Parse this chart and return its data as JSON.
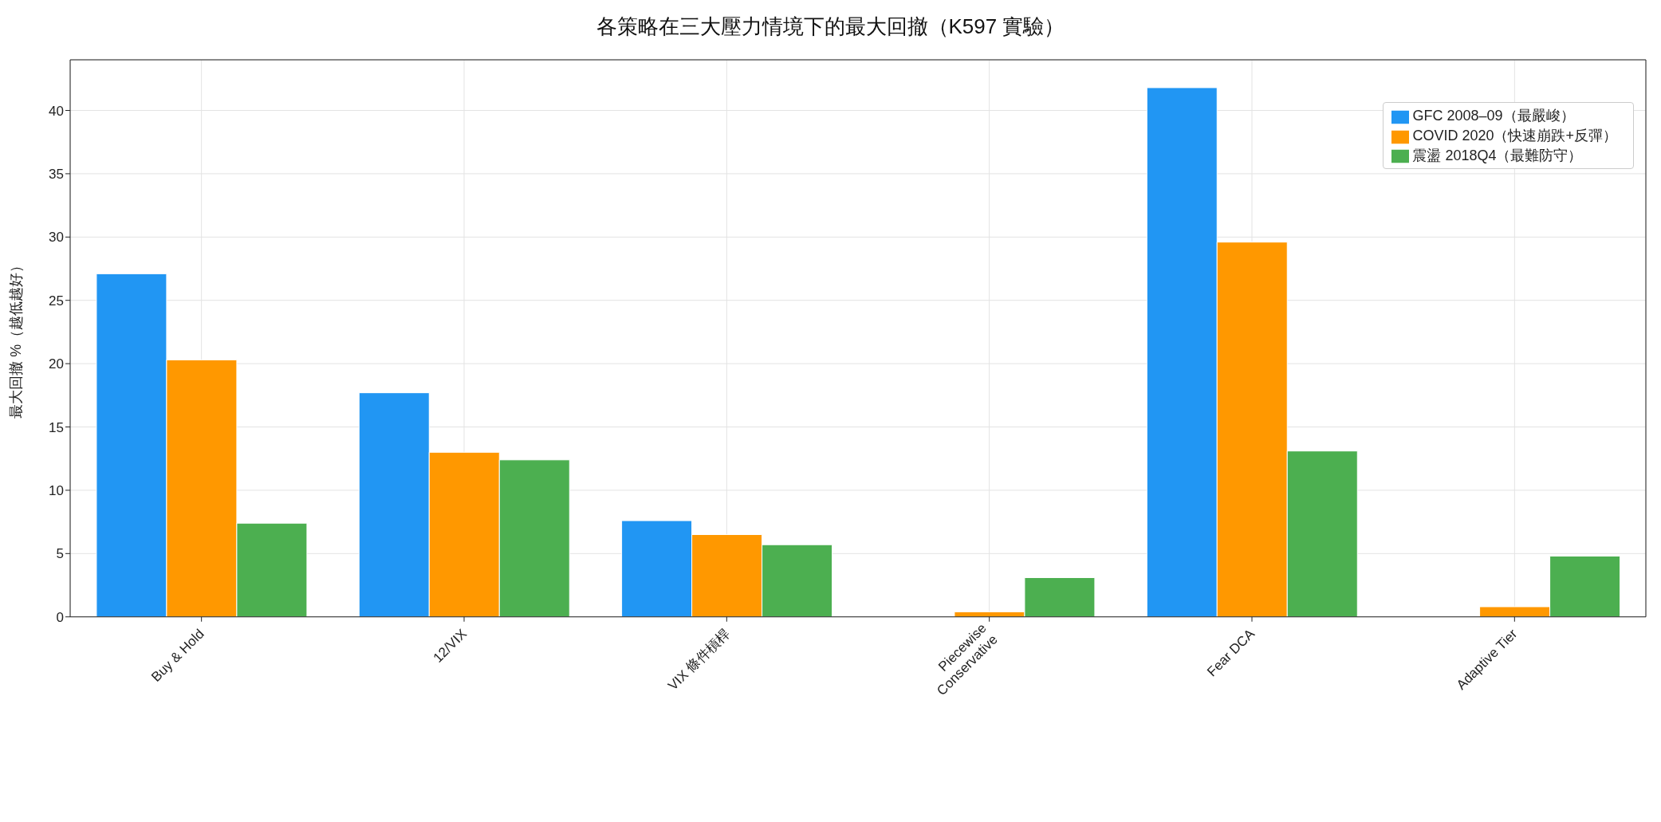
{
  "chart_data": {
    "type": "bar",
    "title": "各策略在三大壓力情境下的最大回撤（K597 實驗）",
    "ylabel": "最大回撤 %（越低越好）",
    "categories": [
      "Buy & Hold",
      "12/VIX",
      "VIX 條件槓桿",
      "Piecewise\nConservative",
      "Fear DCA",
      "Adaptive Tier"
    ],
    "series": [
      {
        "name": "GFC 2008–09（最嚴峻）",
        "color": "#2196f3",
        "values": [
          27.1,
          17.7,
          7.6,
          0,
          41.8,
          0
        ]
      },
      {
        "name": "COVID 2020（快速崩跌+反彈）",
        "color": "#ff9800",
        "values": [
          20.3,
          13.0,
          6.5,
          0.4,
          29.6,
          0.8
        ]
      },
      {
        "name": "震盪 2018Q4（最難防守）",
        "color": "#4caf50",
        "values": [
          7.4,
          12.4,
          5.7,
          3.1,
          13.1,
          4.8
        ]
      }
    ],
    "ylim": [
      0,
      44
    ],
    "yticks": [
      0,
      5,
      10,
      15,
      20,
      25,
      30,
      35,
      40
    ],
    "grid": true,
    "legend": "top right"
  }
}
